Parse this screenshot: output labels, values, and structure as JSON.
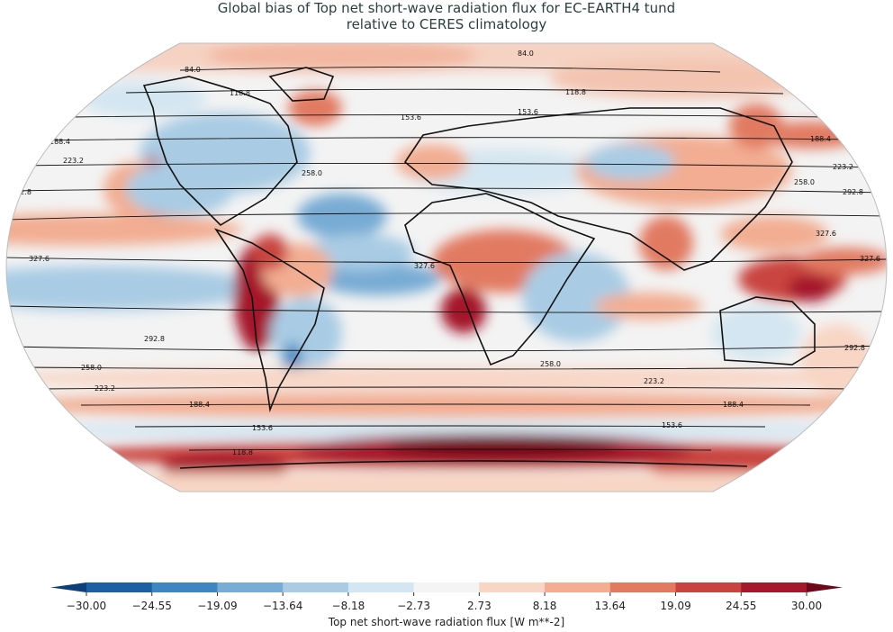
{
  "title": {
    "line1": "Global bias of Top net short-wave radiation flux for EC-EARTH4 tund",
    "line2": "relative to CERES climatology"
  },
  "projection": "robinson",
  "contour_levels": [
    "84.0",
    "118.8",
    "153.6",
    "188.4",
    "223.2",
    "258.0",
    "292.8",
    "327.6"
  ],
  "colorbar": {
    "label": "Top net short-wave radiation flux [W m**-2]",
    "ticks": [
      "−30.00",
      "−24.55",
      "−19.09",
      "−13.64",
      "−8.18",
      "−2.73",
      "2.73",
      "8.18",
      "13.64",
      "19.09",
      "24.55",
      "30.00"
    ],
    "colors": [
      "#1e5fa3",
      "#3f85c0",
      "#78acd4",
      "#a9cce4",
      "#d4e6f1",
      "#f4f4f4",
      "#f8d5c4",
      "#f2ad92",
      "#e27a62",
      "#c94440",
      "#a5172a"
    ],
    "under_color": "#0d3f7a",
    "over_color": "#6e0718"
  }
}
